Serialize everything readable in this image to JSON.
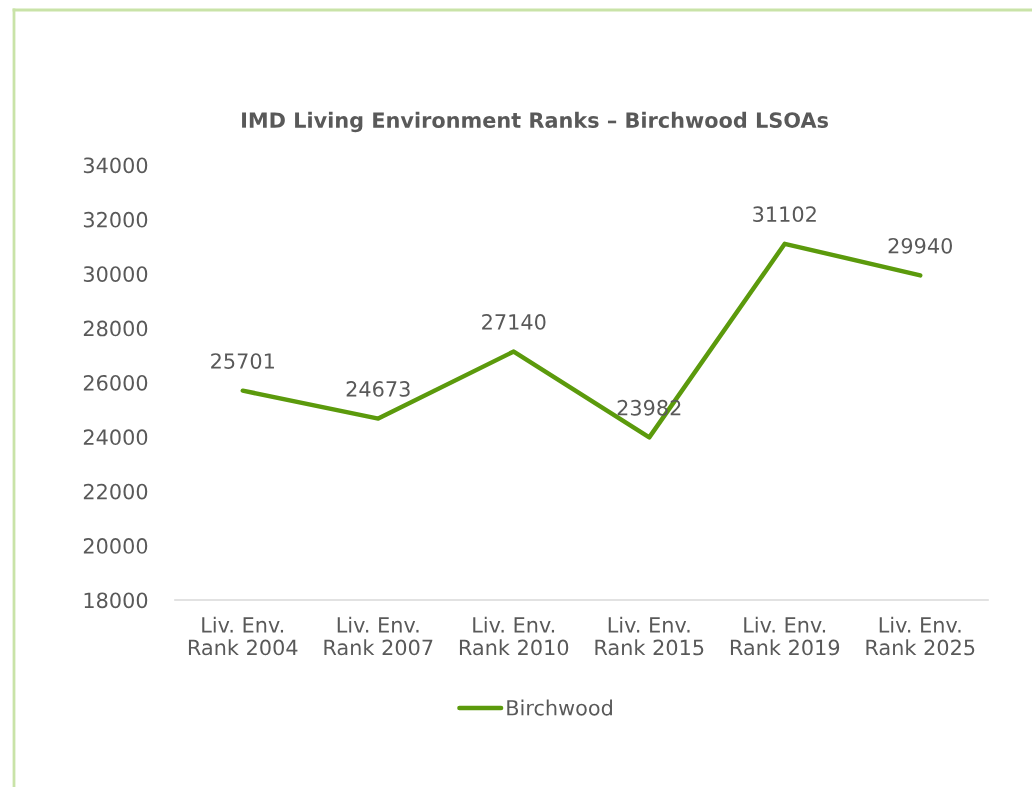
{
  "chart_data": {
    "type": "line",
    "title": "IMD Living Environment Ranks – Birchwood LSOAs",
    "categories": [
      "Liv. Env.\nRank 2004",
      "Liv. Env.\nRank 2007",
      "Liv. Env.\nRank 2010",
      "Liv. Env.\nRank 2015",
      "Liv. Env.\nRank 2019",
      "Liv. Env.\nRank 2025"
    ],
    "series": [
      {
        "name": "Birchwood",
        "color": "#5b9a0c",
        "values": [
          25701,
          24673,
          27140,
          23982,
          31102,
          29940
        ]
      }
    ],
    "ylim": [
      18000,
      34000
    ],
    "yticks": [
      18000,
      20000,
      22000,
      24000,
      26000,
      28000,
      30000,
      32000,
      34000
    ],
    "grid": false,
    "legend": "bottom",
    "data_labels": true
  }
}
